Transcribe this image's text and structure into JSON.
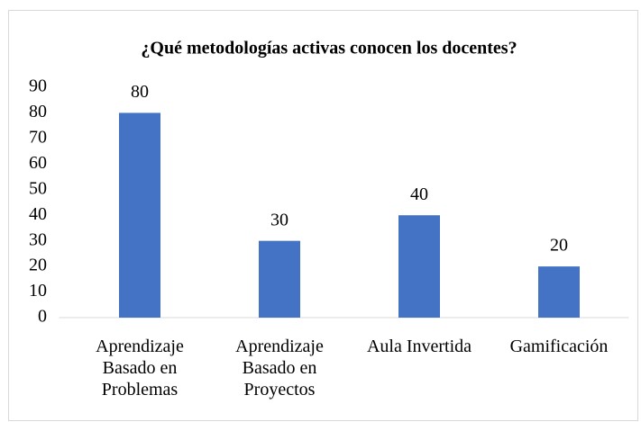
{
  "chart_data": {
    "type": "bar",
    "title": "¿Qué metodologías activas conocen los docentes?",
    "categories": [
      "Aprendizaje Basado en Problemas",
      "Aprendizaje Basado en Proyectos",
      "Aula Invertida",
      "Gamificación"
    ],
    "values": [
      80,
      30,
      40,
      20
    ],
    "color": "#4472c4",
    "ylim": [
      0,
      90
    ],
    "yticks": [
      0,
      10,
      20,
      30,
      40,
      50,
      60,
      70,
      80,
      90
    ],
    "grid": false
  }
}
